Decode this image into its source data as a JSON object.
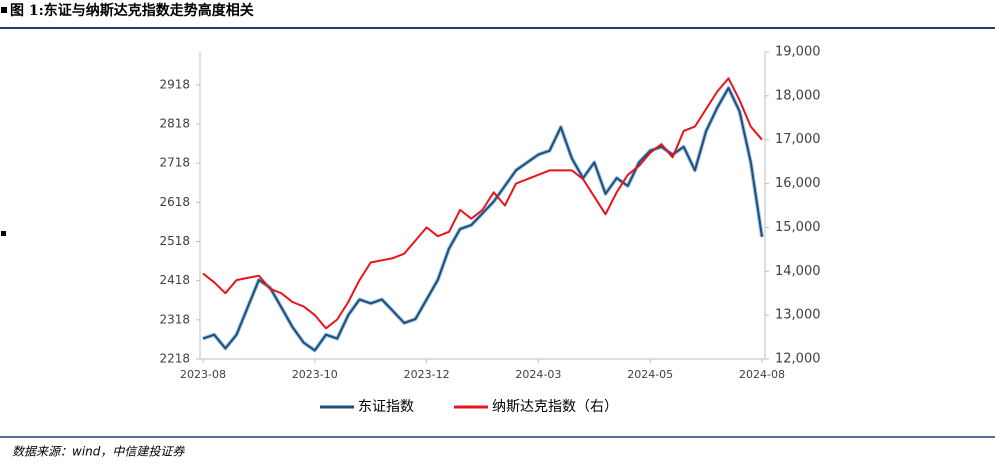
{
  "header": {
    "title": "图 1:东证与纳斯达克指数走势高度相关"
  },
  "chart_data": {
    "type": "line",
    "categories": [
      "2023-08",
      null,
      null,
      null,
      null,
      null,
      null,
      null,
      null,
      null,
      "2023-10",
      null,
      null,
      null,
      null,
      null,
      null,
      null,
      null,
      null,
      "2023-12",
      null,
      null,
      null,
      null,
      null,
      null,
      null,
      null,
      null,
      "2024-03",
      null,
      null,
      null,
      null,
      null,
      null,
      null,
      null,
      null,
      "2024-05",
      null,
      null,
      null,
      null,
      null,
      null,
      null,
      null,
      null,
      "2024-08"
    ],
    "series": [
      {
        "name": "东证指数",
        "color": "#1f4e79",
        "values": [
          2270,
          2280,
          2245,
          2280,
          2350,
          2420,
          2400,
          2350,
          2300,
          2260,
          2240,
          2280,
          2270,
          2330,
          2370,
          2360,
          2370,
          2340,
          2310,
          2320,
          2370,
          2420,
          2500,
          2550,
          2560,
          2590,
          2620,
          2660,
          2700,
          2720,
          2740,
          2750,
          2810,
          2730,
          2680,
          2720,
          2640,
          2680,
          2660,
          2720,
          2750,
          2760,
          2740,
          2760,
          2700,
          2800,
          2860,
          2910,
          2850,
          2720,
          2530
        ]
      },
      {
        "name": "纳斯达克指数（右）",
        "color": "#e8141c",
        "axis": "y2",
        "values": [
          13950,
          13750,
          13500,
          13800,
          13850,
          13900,
          13600,
          13500,
          13300,
          13200,
          13000,
          12700,
          12900,
          13300,
          13800,
          14200,
          14250,
          14300,
          14400,
          14700,
          15000,
          14800,
          14900,
          15400,
          15200,
          15400,
          15800,
          15500,
          16000,
          16100,
          16200,
          16300,
          16300,
          16300,
          16100,
          15700,
          15300,
          15800,
          16200,
          16400,
          16700,
          16900,
          16600,
          17200,
          17300,
          17700,
          18100,
          18400,
          17900,
          17300,
          17000
        ]
      }
    ],
    "ylim": [
      2218,
      3002
    ],
    "yticks": [
      2218,
      2318,
      2418,
      2518,
      2618,
      2718,
      2818,
      2918
    ],
    "y2lim": [
      12000,
      19000
    ],
    "y2ticks": [
      {
        "value": 12000,
        "label": "12,000"
      },
      {
        "value": 13000,
        "label": "13,000"
      },
      {
        "value": 14000,
        "label": "14,000"
      },
      {
        "value": 15000,
        "label": "15,000"
      },
      {
        "value": 16000,
        "label": "16,000"
      },
      {
        "value": 17000,
        "label": "17,000"
      },
      {
        "value": 18000,
        "label": "18,000"
      },
      {
        "value": 19000,
        "label": "19,000"
      }
    ],
    "legend": "bottom"
  },
  "footer": {
    "source": "数据来源：wind，中信建投证券"
  }
}
